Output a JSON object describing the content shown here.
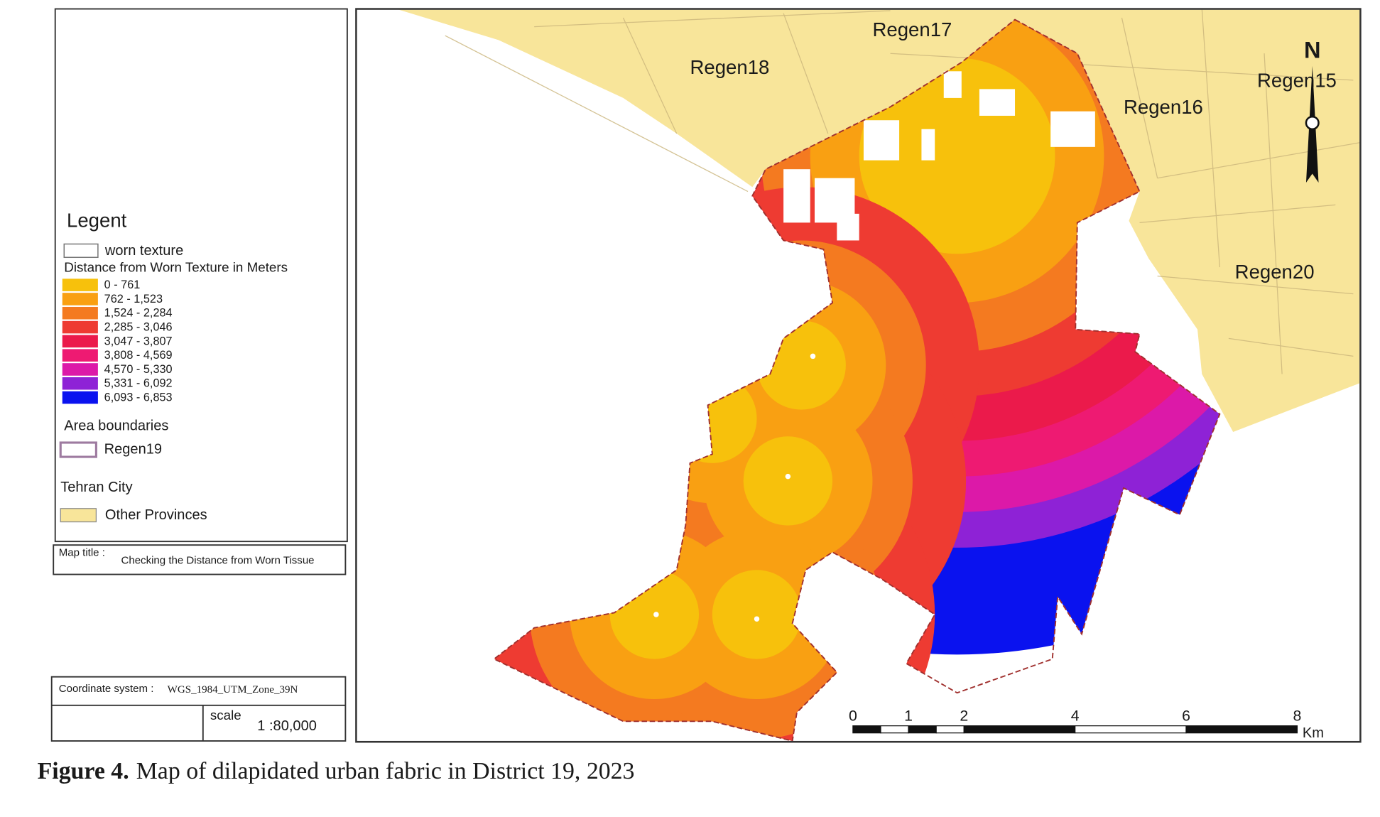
{
  "legend": {
    "title": "Legent",
    "worn_texture": {
      "label": "worn texture",
      "color": "#ffffff"
    },
    "distance_title": "Distance from Worn Texture in Meters",
    "classes": [
      {
        "label": "0 - 761",
        "color": "#f7c10c"
      },
      {
        "label": "762 - 1,523",
        "color": "#f9a012"
      },
      {
        "label": "1,524 - 2,284",
        "color": "#f47a20"
      },
      {
        "label": "2,285 - 3,046",
        "color": "#ee3b32"
      },
      {
        "label": "3,047 - 3,807",
        "color": "#eb1a4b"
      },
      {
        "label": "3,808 - 4,569",
        "color": "#ee1a72"
      },
      {
        "label": "4,570 - 5,330",
        "color": "#dc19a8"
      },
      {
        "label": "5,331 - 6,092",
        "color": "#8e22d6"
      },
      {
        "label": "6,093 - 6,853",
        "color": "#0a12ef"
      }
    ],
    "area_title": "Area boundaries",
    "boundary": {
      "label": "Regen19",
      "color": "#9e7ba0"
    },
    "city_title": "Tehran City",
    "other": {
      "label": "Other Provinces",
      "color": "#f8e59a"
    }
  },
  "map_title": {
    "label": "Map title :",
    "text": "Checking the Distance from Worn Tissue"
  },
  "coordinate_system": {
    "label": "Coordinate system :",
    "text": "WGS_1984_UTM_Zone_39N"
  },
  "scale": {
    "label": "scale",
    "text": "1 :80,000"
  },
  "map": {
    "regions": [
      "Regen17",
      "Regen18",
      "Regen16",
      "Regen15",
      "Regen20"
    ],
    "north": "N",
    "scale_bar": {
      "ticks": [
        0,
        1,
        2,
        4,
        6,
        8
      ],
      "unit": "Km"
    }
  },
  "caption": {
    "label": "Figure 4.",
    "text": "Map of dilapidated urban fabric in District 19, 2023"
  }
}
